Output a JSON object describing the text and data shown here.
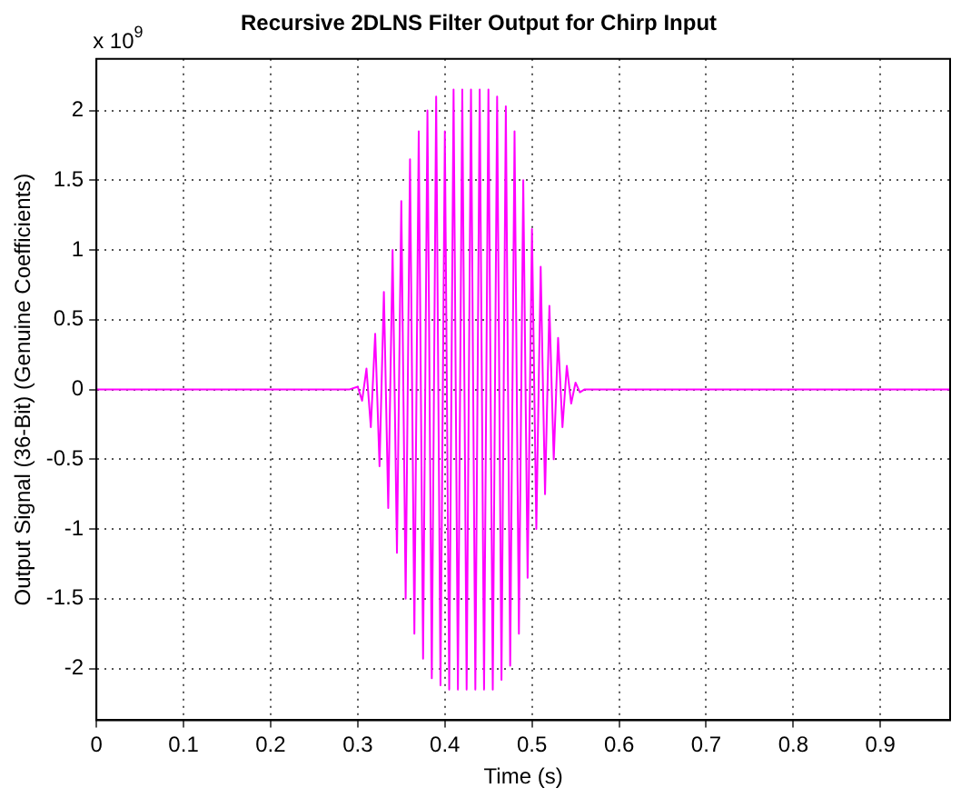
{
  "chart_data": {
    "type": "line",
    "title": "Recursive 2DLNS Filter Output for Chirp Input",
    "xlabel": "Time (s)",
    "ylabel": "Output Signal (36-Bit) (Genuine Coefficients)",
    "annotations": [
      "x 10$^{9}$"
    ],
    "xlim": [
      0,
      0.98
    ],
    "xticks": [
      0,
      0.1,
      0.2,
      0.3,
      0.4,
      0.5,
      0.6,
      0.7,
      0.8,
      0.9
    ],
    "ylim": [
      -2.37,
      2.37
    ],
    "yticks": [
      -2,
      -1.5,
      -1,
      -0.5,
      0,
      0.5,
      1,
      1.5,
      2
    ],
    "grid": true,
    "legend": false,
    "marker": "none",
    "line_style": "solid",
    "series": [
      {
        "color": "#ff00ff",
        "x": [
          0,
          0.1,
          0.2,
          0.29,
          0.3,
          0.305,
          0.31,
          0.315,
          0.32,
          0.325,
          0.33,
          0.335,
          0.34,
          0.345,
          0.35,
          0.355,
          0.36,
          0.365,
          0.37,
          0.375,
          0.38,
          0.385,
          0.39,
          0.395,
          0.4,
          0.405,
          0.41,
          0.415,
          0.42,
          0.425,
          0.43,
          0.435,
          0.44,
          0.445,
          0.45,
          0.455,
          0.46,
          0.465,
          0.47,
          0.475,
          0.48,
          0.485,
          0.49,
          0.495,
          0.5,
          0.505,
          0.51,
          0.515,
          0.52,
          0.525,
          0.53,
          0.535,
          0.54,
          0.545,
          0.55,
          0.555,
          0.56,
          0.7,
          0.98
        ],
        "values": [
          0,
          0,
          0,
          0,
          0.02,
          -0.08,
          0.15,
          -0.27,
          0.4,
          -0.55,
          0.7,
          -0.85,
          1,
          -1.17,
          1.35,
          -1.5,
          1.65,
          -1.75,
          1.85,
          -1.93,
          2,
          -2.07,
          2.1,
          -2.12,
          1.85,
          -2.15,
          2.15,
          -2.15,
          2.15,
          -2.15,
          2.15,
          -2.15,
          2.15,
          -2.15,
          2.15,
          -2.15,
          2.1,
          -2.08,
          2.03,
          -1.98,
          1.85,
          -1.75,
          1.5,
          -1.35,
          1.15,
          -1,
          0.88,
          -0.75,
          0.6,
          -0.5,
          0.37,
          -0.27,
          0.17,
          -0.1,
          0.05,
          -0.02,
          0,
          0,
          0
        ]
      }
    ]
  }
}
